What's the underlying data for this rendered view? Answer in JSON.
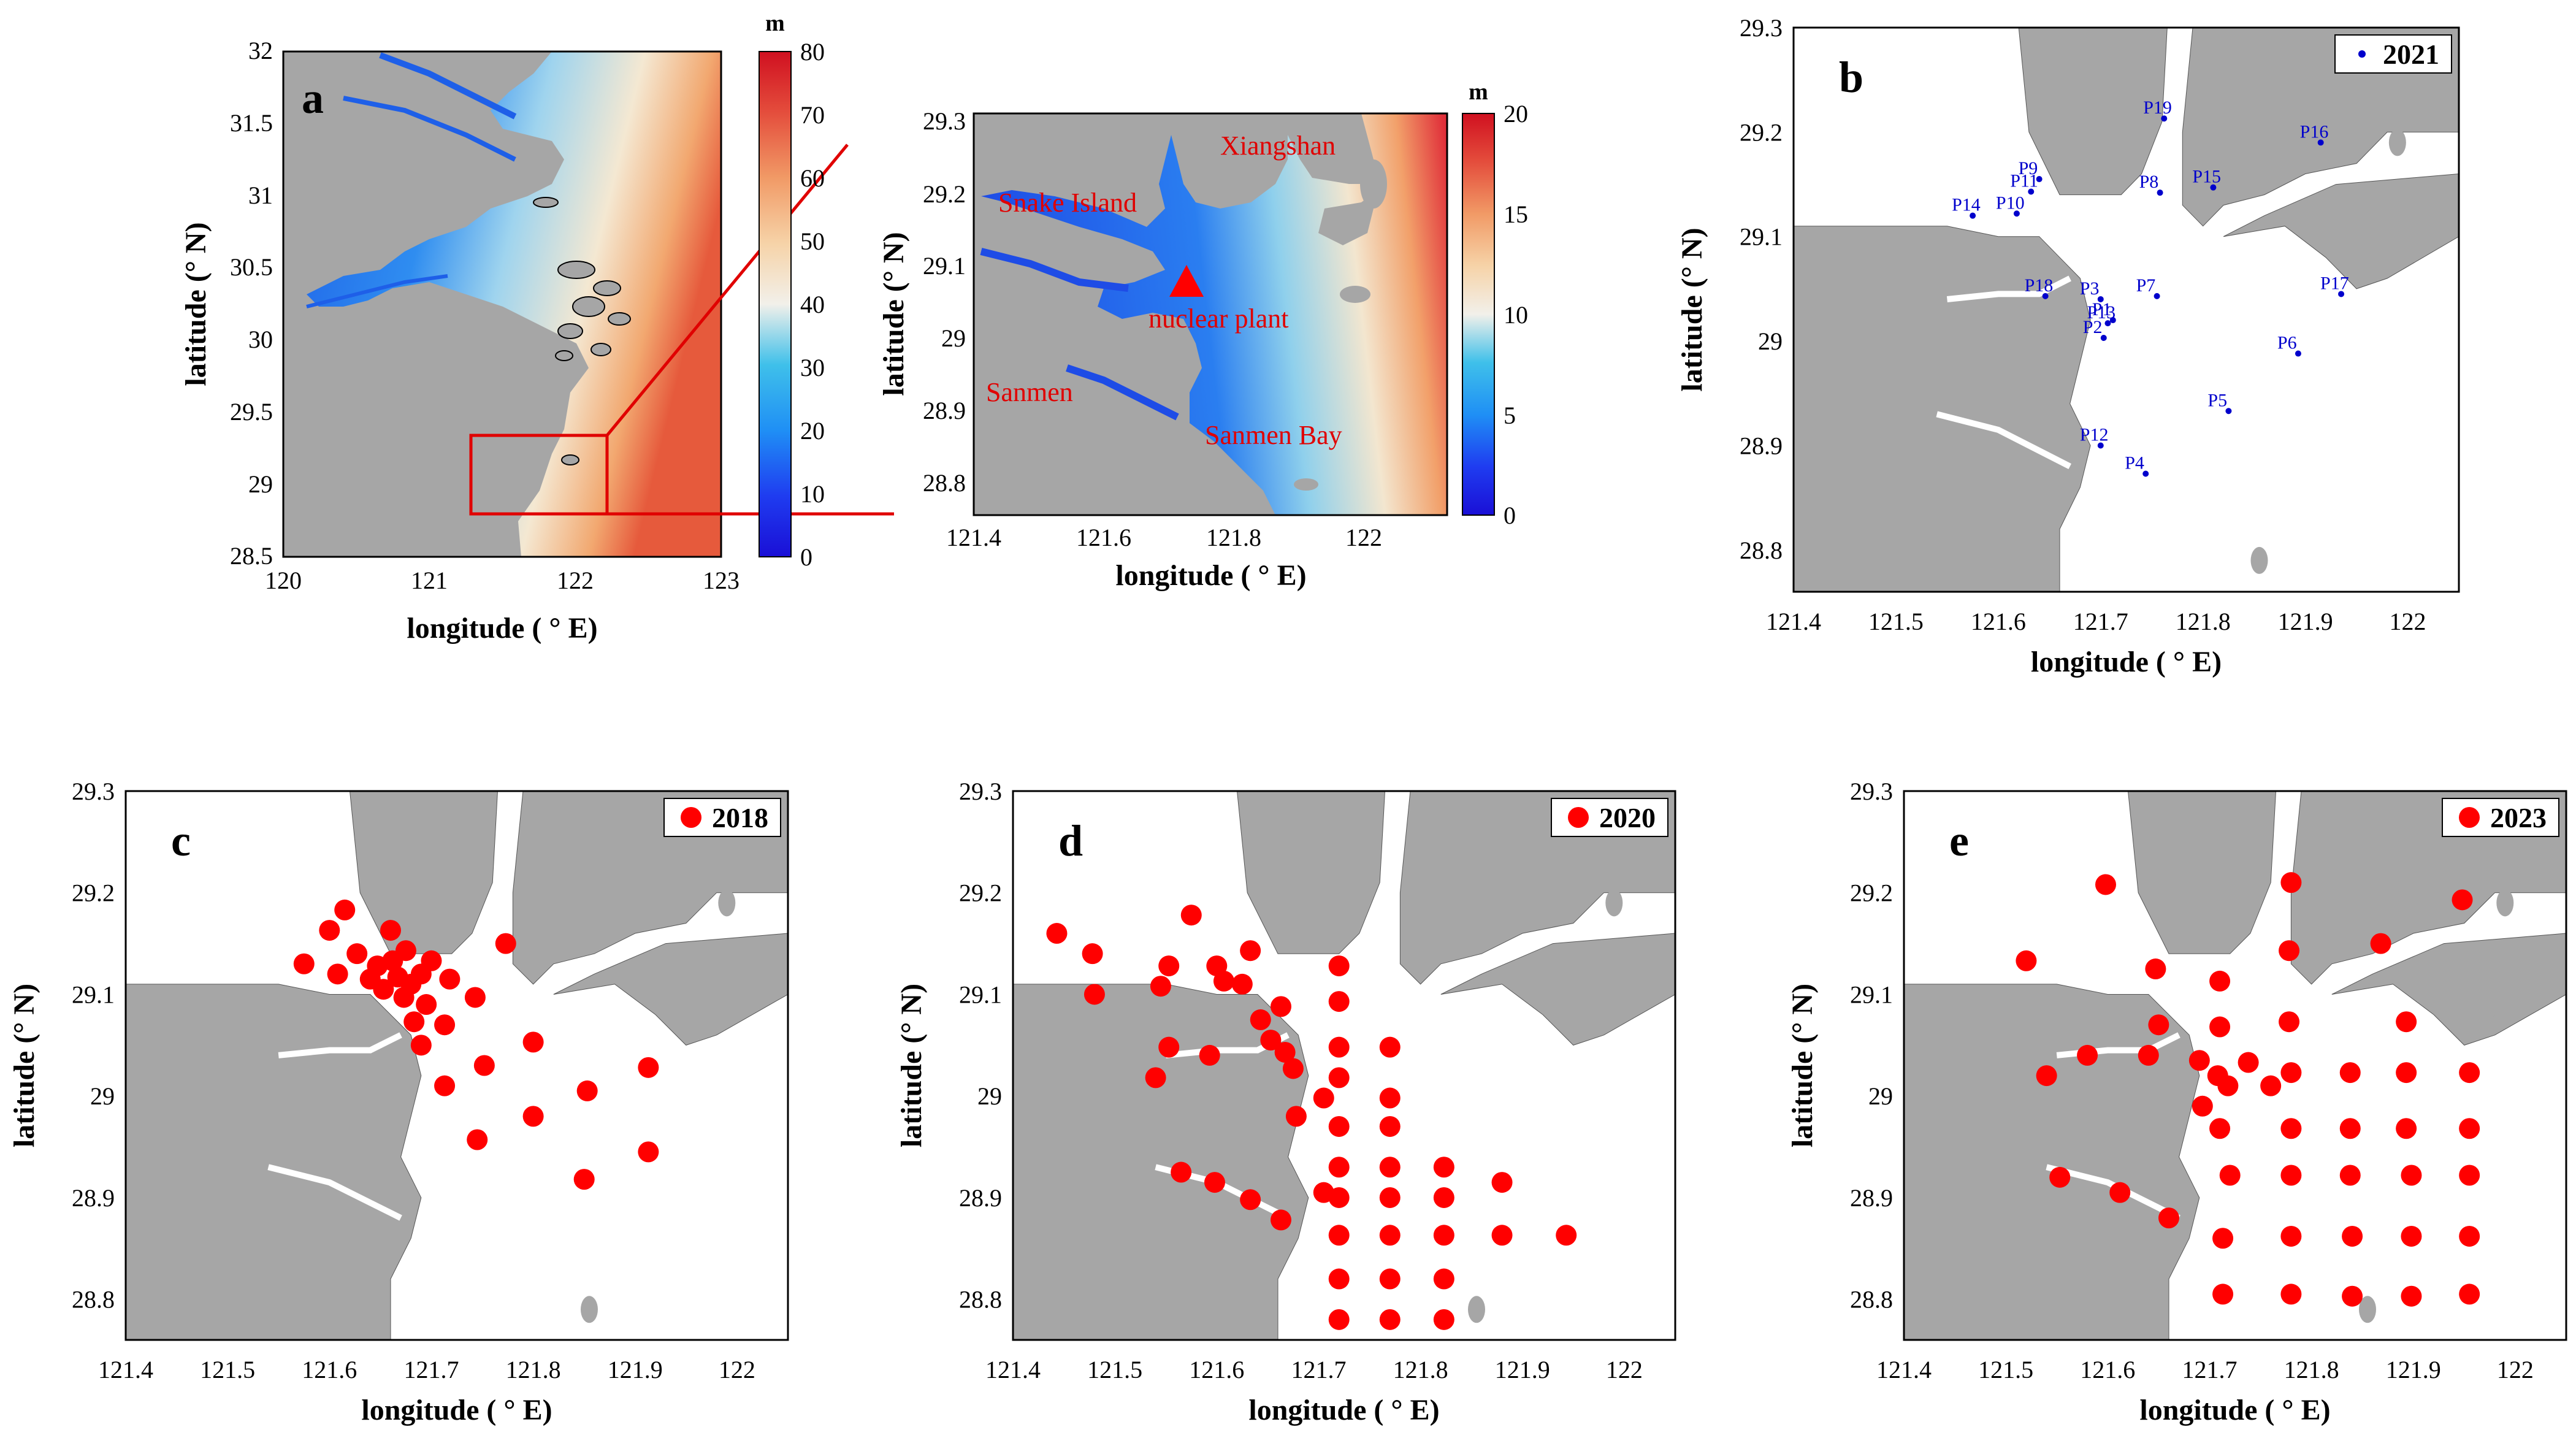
{
  "figure": {
    "panels": [
      {
        "id": "a",
        "label": "a",
        "xlabel": "longitude ( ° E)",
        "ylabel": "latitude (° N)",
        "xticks": [
          "120",
          "121",
          "122",
          "123"
        ],
        "yticks": [
          "32",
          "31.5",
          "31",
          "30.5",
          "30",
          "29.5",
          "29",
          "28.5"
        ],
        "colorbar": {
          "unit": "m",
          "ticks": [
            "80",
            "70",
            "60",
            "50",
            "40",
            "30",
            "20",
            "10",
            "0"
          ]
        }
      },
      {
        "id": "inset",
        "xlabel": "longitude ( ° E)",
        "ylabel": "latitude (° N)",
        "xticks": [
          "121.4",
          "121.6",
          "121.8",
          "122"
        ],
        "yticks": [
          "29.3",
          "29.2",
          "29.1",
          "29",
          "28.9",
          "28.8"
        ],
        "colorbar": {
          "unit": "m",
          "ticks": [
            "20",
            "15",
            "10",
            "5",
            "0"
          ]
        },
        "annotations": [
          "Xiangshan",
          "Snake Island",
          "nuclear plant",
          "Sanmen",
          "Sanmen Bay"
        ]
      },
      {
        "id": "b",
        "label": "b",
        "legend": "2021",
        "xlabel": "longitude ( ° E)",
        "ylabel": "latitude (° N)",
        "xticks": [
          "121.4",
          "121.5",
          "121.6",
          "121.7",
          "121.8",
          "121.9",
          "122"
        ],
        "yticks": [
          "29.3",
          "29.2",
          "29.1",
          "29",
          "28.9",
          "28.8"
        ]
      },
      {
        "id": "c",
        "label": "c",
        "legend": "2018",
        "xlabel": "longitude ( ° E)",
        "ylabel": "latitude (° N)",
        "xticks": [
          "121.4",
          "121.5",
          "121.6",
          "121.7",
          "121.8",
          "121.9",
          "122"
        ],
        "yticks": [
          "29.3",
          "29.2",
          "29.1",
          "29",
          "28.9",
          "28.8"
        ]
      },
      {
        "id": "d",
        "label": "d",
        "legend": "2020",
        "xlabel": "longitude ( ° E)",
        "ylabel": "latitude (° N)",
        "xticks": [
          "121.4",
          "121.5",
          "121.6",
          "121.7",
          "121.8",
          "121.9",
          "122"
        ],
        "yticks": [
          "29.3",
          "29.2",
          "29.1",
          "29",
          "28.9",
          "28.8"
        ]
      },
      {
        "id": "e",
        "label": "e",
        "legend": "2023",
        "xlabel": "longitude ( ° E)",
        "ylabel": "latitude (° N)",
        "xticks": [
          "121.4",
          "121.5",
          "121.6",
          "121.7",
          "121.8",
          "121.9",
          "122"
        ],
        "yticks": [
          "29.3",
          "29.2",
          "29.1",
          "29",
          "28.9",
          "28.8"
        ]
      }
    ]
  },
  "stations_2021": [
    {
      "name": "P1",
      "lon": 121.712,
      "lat": 29.02
    },
    {
      "name": "P2",
      "lon": 121.703,
      "lat": 29.003
    },
    {
      "name": "P3",
      "lon": 121.7,
      "lat": 29.04
    },
    {
      "name": "P4",
      "lon": 121.744,
      "lat": 28.873
    },
    {
      "name": "P5",
      "lon": 121.825,
      "lat": 28.933
    },
    {
      "name": "P6",
      "lon": 121.893,
      "lat": 28.988
    },
    {
      "name": "P7",
      "lon": 121.755,
      "lat": 29.043
    },
    {
      "name": "P8",
      "lon": 121.758,
      "lat": 29.142
    },
    {
      "name": "P9",
      "lon": 121.64,
      "lat": 29.155
    },
    {
      "name": "P10",
      "lon": 121.618,
      "lat": 29.122
    },
    {
      "name": "P11",
      "lon": 121.632,
      "lat": 29.143
    },
    {
      "name": "P12",
      "lon": 121.7,
      "lat": 28.9
    },
    {
      "name": "P13",
      "lon": 121.707,
      "lat": 29.017
    },
    {
      "name": "P14",
      "lon": 121.575,
      "lat": 29.12
    },
    {
      "name": "P15",
      "lon": 121.81,
      "lat": 29.147
    },
    {
      "name": "P16",
      "lon": 121.915,
      "lat": 29.19
    },
    {
      "name": "P17",
      "lon": 121.935,
      "lat": 29.045
    },
    {
      "name": "P18",
      "lon": 121.646,
      "lat": 29.043
    },
    {
      "name": "P19",
      "lon": 121.762,
      "lat": 29.213
    }
  ],
  "stations_2018": [
    {
      "lon": 121.575,
      "lat": 29.13
    },
    {
      "lon": 121.6,
      "lat": 29.163
    },
    {
      "lon": 121.615,
      "lat": 29.183
    },
    {
      "lon": 121.608,
      "lat": 29.12
    },
    {
      "lon": 121.627,
      "lat": 29.14
    },
    {
      "lon": 121.64,
      "lat": 29.115
    },
    {
      "lon": 121.647,
      "lat": 29.128
    },
    {
      "lon": 121.653,
      "lat": 29.105
    },
    {
      "lon": 121.66,
      "lat": 29.163
    },
    {
      "lon": 121.662,
      "lat": 29.133
    },
    {
      "lon": 121.667,
      "lat": 29.117
    },
    {
      "lon": 121.673,
      "lat": 29.097
    },
    {
      "lon": 121.675,
      "lat": 29.143
    },
    {
      "lon": 121.68,
      "lat": 29.11
    },
    {
      "lon": 121.69,
      "lat": 29.12
    },
    {
      "lon": 121.7,
      "lat": 29.133
    },
    {
      "lon": 121.683,
      "lat": 29.073
    },
    {
      "lon": 121.695,
      "lat": 29.09
    },
    {
      "lon": 121.713,
      "lat": 29.07
    },
    {
      "lon": 121.718,
      "lat": 29.115
    },
    {
      "lon": 121.743,
      "lat": 29.097
    },
    {
      "lon": 121.69,
      "lat": 29.05
    },
    {
      "lon": 121.773,
      "lat": 29.15
    },
    {
      "lon": 121.713,
      "lat": 29.01
    },
    {
      "lon": 121.752,
      "lat": 29.03
    },
    {
      "lon": 121.8,
      "lat": 29.053
    },
    {
      "lon": 121.853,
      "lat": 29.005
    },
    {
      "lon": 121.913,
      "lat": 29.028
    },
    {
      "lon": 121.8,
      "lat": 28.98
    },
    {
      "lon": 121.745,
      "lat": 28.957
    },
    {
      "lon": 121.85,
      "lat": 28.918
    },
    {
      "lon": 121.913,
      "lat": 28.945
    }
  ],
  "stations_2020": [
    {
      "lon": 121.443,
      "lat": 29.16
    },
    {
      "lon": 121.478,
      "lat": 29.14
    },
    {
      "lon": 121.48,
      "lat": 29.1
    },
    {
      "lon": 121.545,
      "lat": 29.108
    },
    {
      "lon": 121.553,
      "lat": 29.128
    },
    {
      "lon": 121.575,
      "lat": 29.178
    },
    {
      "lon": 121.6,
      "lat": 29.128
    },
    {
      "lon": 121.607,
      "lat": 29.113
    },
    {
      "lon": 121.625,
      "lat": 29.11
    },
    {
      "lon": 121.633,
      "lat": 29.143
    },
    {
      "lon": 121.643,
      "lat": 29.075
    },
    {
      "lon": 121.653,
      "lat": 29.055
    },
    {
      "lon": 121.663,
      "lat": 29.088
    },
    {
      "lon": 121.667,
      "lat": 29.043
    },
    {
      "lon": 121.675,
      "lat": 29.027
    },
    {
      "lon": 121.553,
      "lat": 29.048
    },
    {
      "lon": 121.593,
      "lat": 29.04
    },
    {
      "lon": 121.54,
      "lat": 29.018
    },
    {
      "lon": 121.72,
      "lat": 29.128
    },
    {
      "lon": 121.72,
      "lat": 29.093
    },
    {
      "lon": 121.72,
      "lat": 29.048
    },
    {
      "lon": 121.72,
      "lat": 29.018
    },
    {
      "lon": 121.72,
      "lat": 28.97
    },
    {
      "lon": 121.72,
      "lat": 28.93
    },
    {
      "lon": 121.72,
      "lat": 28.9
    },
    {
      "lon": 121.72,
      "lat": 28.863
    },
    {
      "lon": 121.72,
      "lat": 28.82
    },
    {
      "lon": 121.72,
      "lat": 28.78
    },
    {
      "lon": 121.77,
      "lat": 29.048
    },
    {
      "lon": 121.77,
      "lat": 28.998
    },
    {
      "lon": 121.77,
      "lat": 28.97
    },
    {
      "lon": 121.77,
      "lat": 28.93
    },
    {
      "lon": 121.77,
      "lat": 28.9
    },
    {
      "lon": 121.77,
      "lat": 28.863
    },
    {
      "lon": 121.77,
      "lat": 28.82
    },
    {
      "lon": 121.77,
      "lat": 28.78
    },
    {
      "lon": 121.705,
      "lat": 28.998
    },
    {
      "lon": 121.678,
      "lat": 28.98
    },
    {
      "lon": 121.705,
      "lat": 28.905
    },
    {
      "lon": 121.823,
      "lat": 28.93
    },
    {
      "lon": 121.823,
      "lat": 28.9
    },
    {
      "lon": 121.823,
      "lat": 28.863
    },
    {
      "lon": 121.823,
      "lat": 28.82
    },
    {
      "lon": 121.823,
      "lat": 28.78
    },
    {
      "lon": 121.88,
      "lat": 28.915
    },
    {
      "lon": 121.88,
      "lat": 28.863
    },
    {
      "lon": 121.943,
      "lat": 28.863
    },
    {
      "lon": 121.565,
      "lat": 28.925
    },
    {
      "lon": 121.598,
      "lat": 28.915
    },
    {
      "lon": 121.633,
      "lat": 28.898
    },
    {
      "lon": 121.663,
      "lat": 28.878
    }
  ],
  "stations_2023": [
    {
      "lon": 121.52,
      "lat": 29.133
    },
    {
      "lon": 121.598,
      "lat": 29.208
    },
    {
      "lon": 121.647,
      "lat": 29.125
    },
    {
      "lon": 121.71,
      "lat": 29.113
    },
    {
      "lon": 121.78,
      "lat": 29.21
    },
    {
      "lon": 121.778,
      "lat": 29.143
    },
    {
      "lon": 121.868,
      "lat": 29.15
    },
    {
      "lon": 121.948,
      "lat": 29.193
    },
    {
      "lon": 121.54,
      "lat": 29.02
    },
    {
      "lon": 121.58,
      "lat": 29.04
    },
    {
      "lon": 121.64,
      "lat": 29.04
    },
    {
      "lon": 121.65,
      "lat": 29.07
    },
    {
      "lon": 121.71,
      "lat": 29.068
    },
    {
      "lon": 121.76,
      "lat": 29.01
    },
    {
      "lon": 121.778,
      "lat": 29.073
    },
    {
      "lon": 121.893,
      "lat": 29.073
    },
    {
      "lon": 121.69,
      "lat": 29.035
    },
    {
      "lon": 121.708,
      "lat": 29.02
    },
    {
      "lon": 121.718,
      "lat": 29.01
    },
    {
      "lon": 121.738,
      "lat": 29.033
    },
    {
      "lon": 121.693,
      "lat": 28.99
    },
    {
      "lon": 121.78,
      "lat": 29.023
    },
    {
      "lon": 121.838,
      "lat": 29.023
    },
    {
      "lon": 121.893,
      "lat": 29.023
    },
    {
      "lon": 121.955,
      "lat": 29.023
    },
    {
      "lon": 121.71,
      "lat": 28.968
    },
    {
      "lon": 121.78,
      "lat": 28.968
    },
    {
      "lon": 121.838,
      "lat": 28.968
    },
    {
      "lon": 121.893,
      "lat": 28.968
    },
    {
      "lon": 121.955,
      "lat": 28.968
    },
    {
      "lon": 121.72,
      "lat": 28.922
    },
    {
      "lon": 121.78,
      "lat": 28.922
    },
    {
      "lon": 121.838,
      "lat": 28.922
    },
    {
      "lon": 121.898,
      "lat": 28.922
    },
    {
      "lon": 121.955,
      "lat": 28.922
    },
    {
      "lon": 121.553,
      "lat": 28.92
    },
    {
      "lon": 121.612,
      "lat": 28.905
    },
    {
      "lon": 121.66,
      "lat": 28.88
    },
    {
      "lon": 121.713,
      "lat": 28.86
    },
    {
      "lon": 121.78,
      "lat": 28.862
    },
    {
      "lon": 121.84,
      "lat": 28.862
    },
    {
      "lon": 121.898,
      "lat": 28.862
    },
    {
      "lon": 121.955,
      "lat": 28.862
    },
    {
      "lon": 121.713,
      "lat": 28.805
    },
    {
      "lon": 121.78,
      "lat": 28.805
    },
    {
      "lon": 121.84,
      "lat": 28.803
    },
    {
      "lon": 121.898,
      "lat": 28.803
    },
    {
      "lon": 121.955,
      "lat": 28.805
    }
  ],
  "colors": {
    "land": "#a6a6a6",
    "water": "#ffffff",
    "station_dot": "#ff0000",
    "station_2021": "#0000cc",
    "annotation": "#e00000",
    "zoom_box": "#e00000"
  }
}
